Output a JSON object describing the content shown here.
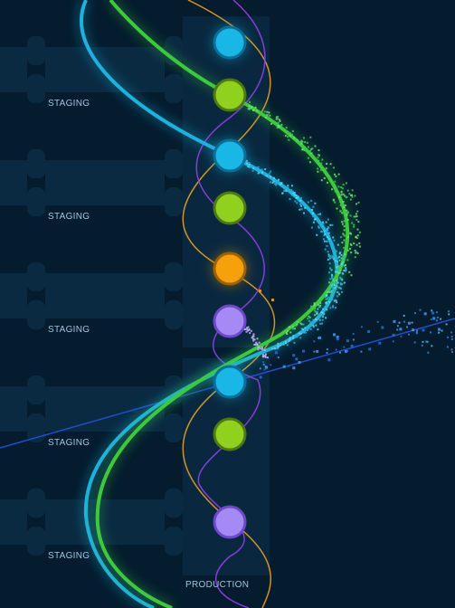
{
  "stage_labels": [
    "STAGING",
    "STAGING",
    "STAGING",
    "STAGING",
    "STAGING"
  ],
  "production_label": "PRODUCTION",
  "colors": {
    "background": "#041c2e",
    "panel": "#0a2a42",
    "label": "#9fc6dc",
    "cyan": "#1ab3dd",
    "green": "#3cc93c",
    "orange": "#e8a21c",
    "purple": "#8a3ee0",
    "blue_line": "#1f4fd1",
    "node_cyan": "#17b7e6",
    "node_lime": "#8fd11c",
    "node_orange": "#f5a20a",
    "node_lavender": "#a58af5"
  },
  "nodes": [
    {
      "color": "cyan"
    },
    {
      "color": "lime"
    },
    {
      "color": "cyan"
    },
    {
      "color": "lime"
    },
    {
      "color": "orange"
    },
    {
      "color": "lavender"
    },
    {
      "color": "cyan"
    },
    {
      "color": "lime"
    },
    {
      "color": "lavender"
    }
  ]
}
